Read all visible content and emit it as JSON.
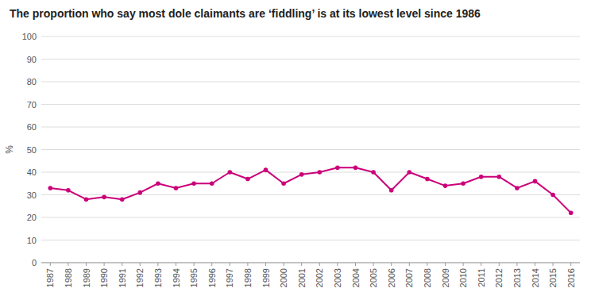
{
  "chart_data": {
    "type": "line",
    "title": "The proportion who say most dole claimants are ‘fiddling’ is at its lowest level since 1986",
    "ylabel": "%",
    "x": [
      1987,
      1988,
      1989,
      1990,
      1991,
      1992,
      1993,
      1994,
      1995,
      1996,
      1997,
      1998,
      1999,
      2000,
      2001,
      2002,
      2003,
      2004,
      2005,
      2006,
      2007,
      2008,
      2009,
      2010,
      2011,
      2012,
      2013,
      2014,
      2015,
      2016
    ],
    "values": [
      33,
      32,
      28,
      29,
      28,
      31,
      35,
      33,
      35,
      35,
      40,
      37,
      41,
      35,
      39,
      40,
      42,
      42,
      40,
      32,
      40,
      37,
      34,
      35,
      38,
      38,
      33,
      36,
      30,
      22
    ],
    "color": "#cc007a",
    "marker": "circle",
    "xlim": [
      1986.5,
      2016.5
    ],
    "xticks": [
      1987,
      1988,
      1989,
      1990,
      1991,
      1992,
      1993,
      1994,
      1995,
      1996,
      1997,
      1998,
      1999,
      2000,
      2001,
      2002,
      2003,
      2004,
      2005,
      2006,
      2007,
      2008,
      2009,
      2010,
      2011,
      2012,
      2013,
      2014,
      2015,
      2016
    ],
    "ylim": [
      0,
      100
    ],
    "yticks": [
      0,
      10,
      20,
      30,
      40,
      50,
      60,
      70,
      80,
      90,
      100
    ],
    "grid": true
  }
}
